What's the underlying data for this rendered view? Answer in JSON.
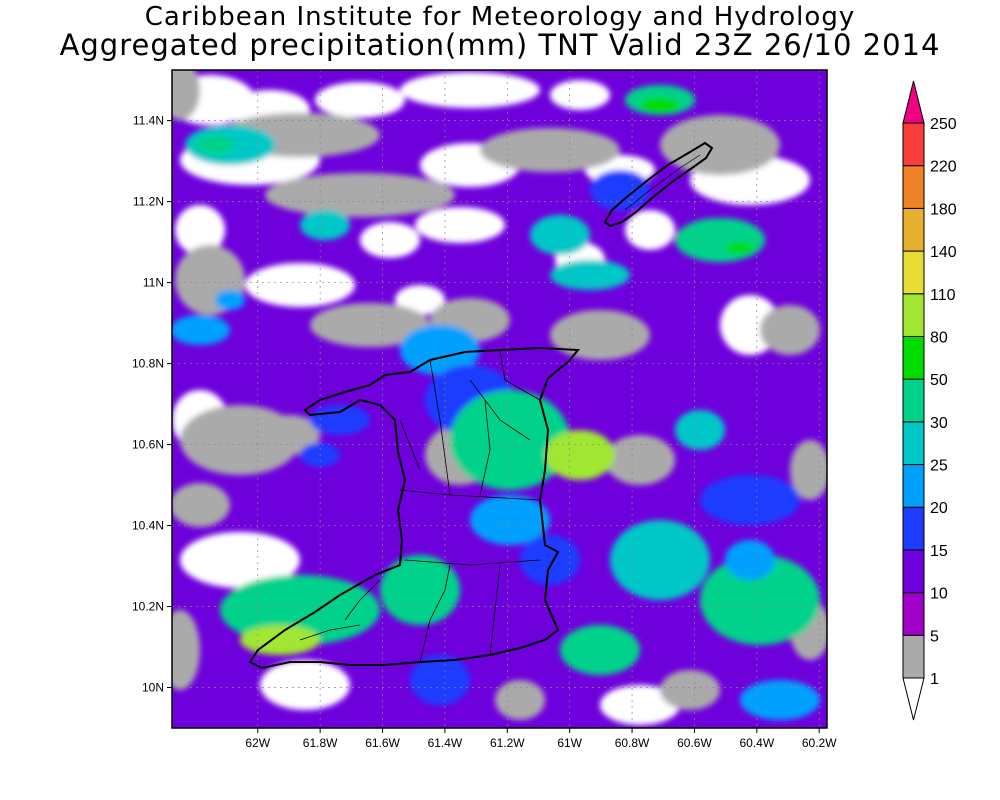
{
  "header": {
    "title_line1": "Caribbean Institute for Meteorology and Hydrology",
    "title_line2": "Aggregated precipitation(mm) TNT Valid 23Z 26/10 2014"
  },
  "map": {
    "lon_range": [
      -62.275,
      -60.175
    ],
    "lat_range": [
      9.9,
      11.525
    ],
    "x_ticks": [
      {
        "value": -62.0,
        "label": "62W"
      },
      {
        "value": -61.8,
        "label": "61.8W"
      },
      {
        "value": -61.6,
        "label": "61.6W"
      },
      {
        "value": -61.4,
        "label": "61.4W"
      },
      {
        "value": -61.2,
        "label": "61.2W"
      },
      {
        "value": -61.0,
        "label": "61W"
      },
      {
        "value": -60.8,
        "label": "60.8W"
      },
      {
        "value": -60.6,
        "label": "60.6W"
      },
      {
        "value": -60.4,
        "label": "60.4W"
      },
      {
        "value": -60.2,
        "label": "60.2W"
      }
    ],
    "y_ticks": [
      {
        "value": 11.4,
        "label": "11.4N"
      },
      {
        "value": 11.2,
        "label": "11.2N"
      },
      {
        "value": 11.0,
        "label": "11N"
      },
      {
        "value": 10.8,
        "label": "10.8N"
      },
      {
        "value": 10.6,
        "label": "10.6N"
      },
      {
        "value": 10.4,
        "label": "10.4N"
      },
      {
        "value": 10.2,
        "label": "10.2N"
      },
      {
        "value": 10.0,
        "label": "10N"
      }
    ],
    "grid": true
  },
  "colorbar": {
    "levels": [
      "1",
      "5",
      "10",
      "15",
      "20",
      "25",
      "30",
      "50",
      "80",
      "110",
      "140",
      "180",
      "220",
      "250"
    ],
    "colors": [
      "#aaaaaa",
      "#a000c8",
      "#6e00dc",
      "#1e3cff",
      "#00a0ff",
      "#00c8c8",
      "#00d28c",
      "#00dc00",
      "#a0e632",
      "#e6dc32",
      "#e6af2d",
      "#f08228",
      "#fa3c3c",
      "#f00082"
    ],
    "under_color": "#ffffff",
    "over_color": "#f00082"
  },
  "colors": {
    "land_outline": "#000000",
    "background": "#ffffff"
  }
}
